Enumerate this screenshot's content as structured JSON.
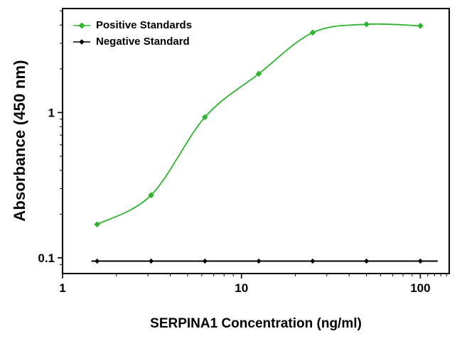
{
  "chart_data": {
    "type": "line",
    "title": "",
    "xlabel": "SERPINA1 Concentration (ng/ml)",
    "ylabel": "Absorbance (450 nm)",
    "x_scale": "log",
    "y_scale": "log",
    "xlim": [
      1,
      145
    ],
    "ylim": [
      0.078,
      5.2
    ],
    "x_ticks": [
      1,
      10,
      100
    ],
    "y_ticks": [
      0.1,
      1
    ],
    "grid": false,
    "legend_position": "top-left",
    "marker": "diamond",
    "axis_color": "#000000",
    "text_color": "#000000",
    "background": "#ffffff",
    "x": [
      1.56,
      3.125,
      6.25,
      12.5,
      25,
      50,
      100
    ],
    "series": [
      {
        "name": "Positive Standards",
        "color": "#2eb42e",
        "curve": "sigmoid-smooth",
        "values": [
          0.17,
          0.27,
          0.93,
          1.85,
          3.55,
          4.05,
          3.95
        ]
      },
      {
        "name": "Negative Standard",
        "color": "#000000",
        "curve": "flat-line",
        "values": [
          0.095,
          0.095,
          0.095,
          0.095,
          0.095,
          0.095,
          0.095
        ]
      }
    ]
  }
}
